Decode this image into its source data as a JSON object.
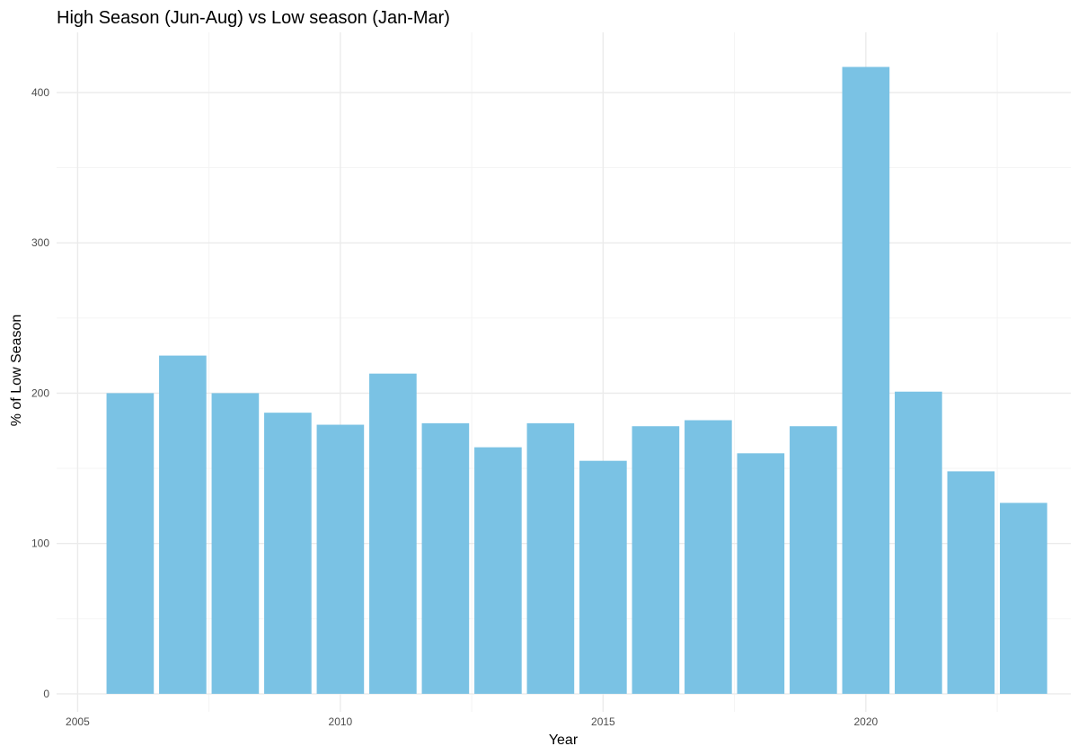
{
  "chart_data": {
    "type": "bar",
    "title": "High Season (Jun-Aug) vs Low season (Jan-Mar)",
    "xlabel": "Year",
    "ylabel": "% of Low Season",
    "x": [
      2006,
      2007,
      2008,
      2009,
      2010,
      2011,
      2012,
      2013,
      2014,
      2015,
      2016,
      2017,
      2018,
      2019,
      2020,
      2021,
      2022,
      2023
    ],
    "values": [
      200,
      225,
      200,
      187,
      179,
      213,
      180,
      164,
      180,
      155,
      178,
      182,
      160,
      178,
      417,
      201,
      148,
      127
    ],
    "xlim": [
      2004.6,
      2023.9
    ],
    "ylim": [
      -12,
      440
    ],
    "xticks": [
      2005,
      2010,
      2015,
      2020
    ],
    "yticks": [
      0,
      100,
      200,
      300,
      400
    ],
    "bar_color": "#7AC2E4",
    "grid": true,
    "legend": "none"
  }
}
